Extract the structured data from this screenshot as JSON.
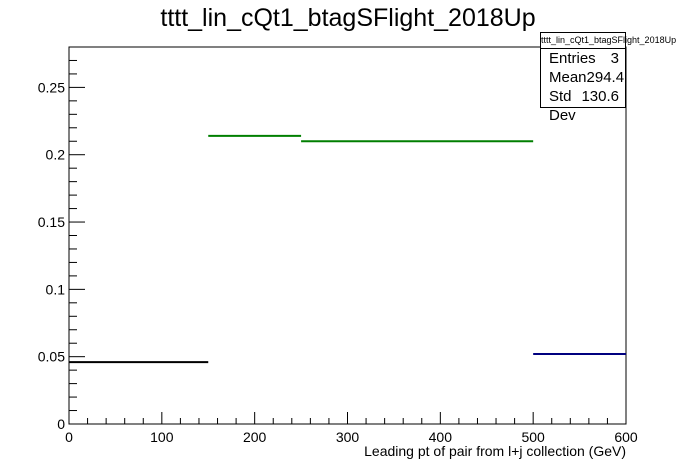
{
  "title": "tttt_lin_cQt1_btagSFlight_2018Up",
  "stats": {
    "name": "tttt_lin_cQt1_btagSFlight_2018Up",
    "rows": [
      {
        "label": "Entries",
        "value": "3"
      },
      {
        "label": "Mean",
        "value": "294.4"
      },
      {
        "label": "Std Dev",
        "value": "130.6"
      }
    ]
  },
  "chart_data": {
    "type": "histogram",
    "title": "tttt_lin_cQt1_btagSFlight_2018Up",
    "xlabel": "Leading pt of pair from l+j collection (GeV)",
    "ylabel": "",
    "xlim": [
      0,
      600
    ],
    "ylim": [
      0,
      0.28
    ],
    "xticks": [
      0,
      100,
      200,
      300,
      400,
      500,
      600
    ],
    "yticks": [
      0,
      0.05,
      0.1,
      0.15,
      0.2,
      0.25
    ],
    "grid": false,
    "bins": [
      {
        "x0": 0,
        "x1": 150,
        "value": 0.046,
        "color": "#000000"
      },
      {
        "x0": 150,
        "x1": 250,
        "value": 0.214,
        "color": "#007f00"
      },
      {
        "x0": 250,
        "x1": 500,
        "value": 0.21,
        "color": "#007f00"
      },
      {
        "x0": 500,
        "x1": 600,
        "value": 0.052,
        "color": "#00007f"
      }
    ]
  }
}
